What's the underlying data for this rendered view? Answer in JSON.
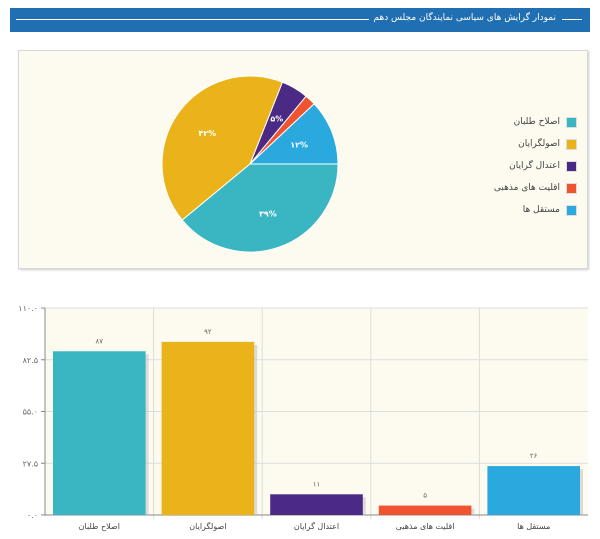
{
  "header": {
    "title": "نمودار گرایش های سیاسی نمایندگان مجلس دهم"
  },
  "chart_data": [
    {
      "type": "pie",
      "labels": [
        "اصلاح طلبان",
        "اصولگرایان",
        "اعتدال گرایان",
        "اقلیت های مذهبی",
        "مستقل ها"
      ],
      "values": [
        39,
        42,
        5,
        2,
        12
      ],
      "data_labels": [
        "۳۹%",
        "۴۲%",
        "۵%",
        "",
        "۱۲%"
      ],
      "colors": [
        "#3ab5c2",
        "#ebb31a",
        "#4b2a85",
        "#f0532f",
        "#2aa9df"
      ],
      "legend": "right"
    },
    {
      "type": "bar",
      "categories": [
        "اصلاح طلبان",
        "اصولگرایان",
        "اعتدال گرایان",
        "اقلیت های مذهبی",
        "مستقل ها"
      ],
      "values": [
        87,
        92,
        11,
        5,
        26
      ],
      "data_labels": [
        "۸۷",
        "۹۲",
        "۱۱",
        "۵",
        "۲۶"
      ],
      "colors": [
        "#3ab5c2",
        "#ebb31a",
        "#4b2a85",
        "#f0532f",
        "#2aa9df"
      ],
      "ylim": [
        0,
        110
      ],
      "yticks": [
        0,
        27.5,
        55,
        82.5,
        110
      ],
      "ytick_labels": [
        "۰.۰",
        "۲۷.۵",
        "۵۵.۰",
        "۸۲.۵",
        "۱۱۰.۰"
      ],
      "grid": true
    }
  ]
}
